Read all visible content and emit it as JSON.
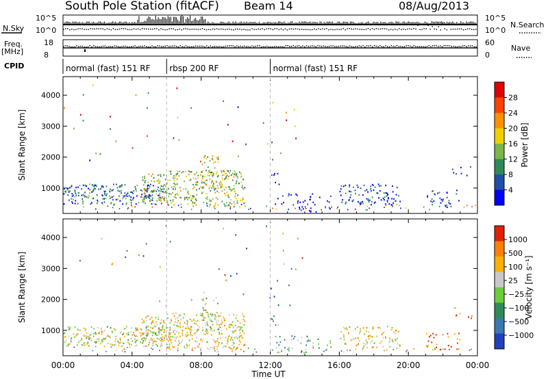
{
  "header": {
    "station": "South Pole Station (fitACF)",
    "beam": "Beam 14",
    "date": "08/Aug/2013"
  },
  "top_panels": {
    "nsky_label": "N.Sky",
    "nsky_ticks": [
      "10^5",
      "10^0"
    ],
    "nsearch_label": "N.Search",
    "nsearch_ticks": [
      "10^5",
      "10^0"
    ],
    "freq_label": "Freq.",
    "freq_unit": "[MHz]",
    "freq_ticks": [
      "18",
      "8"
    ],
    "nave_label": "Nave",
    "nave_ticks": [
      "60",
      "0"
    ],
    "cpid_label": "CPID",
    "cpid_segments": [
      {
        "label": "normal (fast) 151 RF",
        "start_h": 0,
        "end_h": 6
      },
      {
        "label": "rbsp 200 RF",
        "start_h": 6,
        "end_h": 12
      },
      {
        "label": "normal (fast) 151 RF",
        "start_h": 12,
        "end_h": 24
      }
    ]
  },
  "chart_data": [
    {
      "type": "heatmap",
      "ylabel": "Slant Range [km]",
      "xlabel": "Time UT",
      "xlim": [
        0,
        24
      ],
      "ylim": [
        180,
        4600
      ],
      "yticks": [
        "1000",
        "2000",
        "3000",
        "4000"
      ],
      "colorbar_label": "Power [dB]",
      "colorbar_ticks": [
        "28",
        "24",
        "20",
        "16",
        "12",
        "8",
        "4"
      ],
      "colorbar_colors": [
        "#0000ff",
        "#1f4fa8",
        "#2e8b57",
        "#7ab648",
        "#f0d000",
        "#ff9000",
        "#ff4000",
        "#e00000"
      ],
      "scatter_regions": [
        {
          "t0": 0.0,
          "t1": 6.0,
          "r0": 500,
          "r1": 1150,
          "density": 0.85,
          "color_bias": 0.25
        },
        {
          "t0": 4.5,
          "t1": 6.0,
          "r0": 600,
          "r1": 1500,
          "density": 0.8,
          "color_bias": 0.5
        },
        {
          "t0": 6.0,
          "t1": 10.5,
          "r0": 400,
          "r1": 1600,
          "density": 0.75,
          "color_bias": 0.45
        },
        {
          "t0": 8.0,
          "t1": 9.0,
          "r0": 1000,
          "r1": 2100,
          "density": 0.5,
          "color_bias": 0.5
        },
        {
          "t0": 12.0,
          "t1": 12.5,
          "r0": 1100,
          "r1": 1500,
          "density": 0.4,
          "color_bias": 0.1
        },
        {
          "t0": 12.2,
          "t1": 15.5,
          "r0": 250,
          "r1": 850,
          "density": 0.3,
          "color_bias": 0.05
        },
        {
          "t0": 16.0,
          "t1": 19.5,
          "r0": 450,
          "r1": 1150,
          "density": 0.55,
          "color_bias": 0.12
        },
        {
          "t0": 21.0,
          "t1": 23.0,
          "r0": 400,
          "r1": 950,
          "density": 0.4,
          "color_bias": 0.15
        },
        {
          "t0": 22.5,
          "t1": 23.7,
          "r0": 1400,
          "r1": 1750,
          "density": 0.25,
          "color_bias": 0.05
        }
      ]
    },
    {
      "type": "heatmap",
      "ylabel": "Slant Range [km]",
      "xlabel": "Time UT",
      "xlim": [
        0,
        24
      ],
      "ylim": [
        180,
        4600
      ],
      "yticks": [
        "1000",
        "2000",
        "3000",
        "4000"
      ],
      "xticks": [
        "00:00",
        "04:00",
        "08:00",
        "12:00",
        "16:00",
        "20:00",
        "00:00"
      ],
      "colorbar_label": "Velocity [m s⁻¹]",
      "colorbar_ticks": [
        "1000",
        "500",
        "100",
        "25",
        "−25",
        "−100",
        "−500",
        "−1000"
      ],
      "colorbar_colors": [
        "#2040c0",
        "#3a78b0",
        "#2e8b57",
        "#6acd3c",
        "#c8c8c8",
        "#ffb000",
        "#ff8000",
        "#e02000"
      ],
      "scatter_regions": [
        {
          "t0": 0.0,
          "t1": 6.0,
          "r0": 500,
          "r1": 1150,
          "density": 0.85,
          "color_bias": 0.55
        },
        {
          "t0": 4.5,
          "t1": 6.0,
          "r0": 600,
          "r1": 1500,
          "density": 0.8,
          "color_bias": 0.6
        },
        {
          "t0": 6.0,
          "t1": 10.5,
          "r0": 400,
          "r1": 1600,
          "density": 0.75,
          "color_bias": 0.6
        },
        {
          "t0": 8.0,
          "t1": 9.0,
          "r0": 1000,
          "r1": 2100,
          "density": 0.5,
          "color_bias": 0.45
        },
        {
          "t0": 12.0,
          "t1": 12.5,
          "r0": 1100,
          "r1": 1500,
          "density": 0.4,
          "color_bias": 0.4
        },
        {
          "t0": 12.2,
          "t1": 15.5,
          "r0": 250,
          "r1": 850,
          "density": 0.3,
          "color_bias": 0.4
        },
        {
          "t0": 16.0,
          "t1": 19.5,
          "r0": 450,
          "r1": 1150,
          "density": 0.55,
          "color_bias": 0.6
        },
        {
          "t0": 21.0,
          "t1": 23.0,
          "r0": 400,
          "r1": 950,
          "density": 0.4,
          "color_bias": 0.85
        },
        {
          "t0": 22.5,
          "t1": 23.7,
          "r0": 1400,
          "r1": 1750,
          "density": 0.25,
          "color_bias": 0.85
        }
      ]
    }
  ]
}
